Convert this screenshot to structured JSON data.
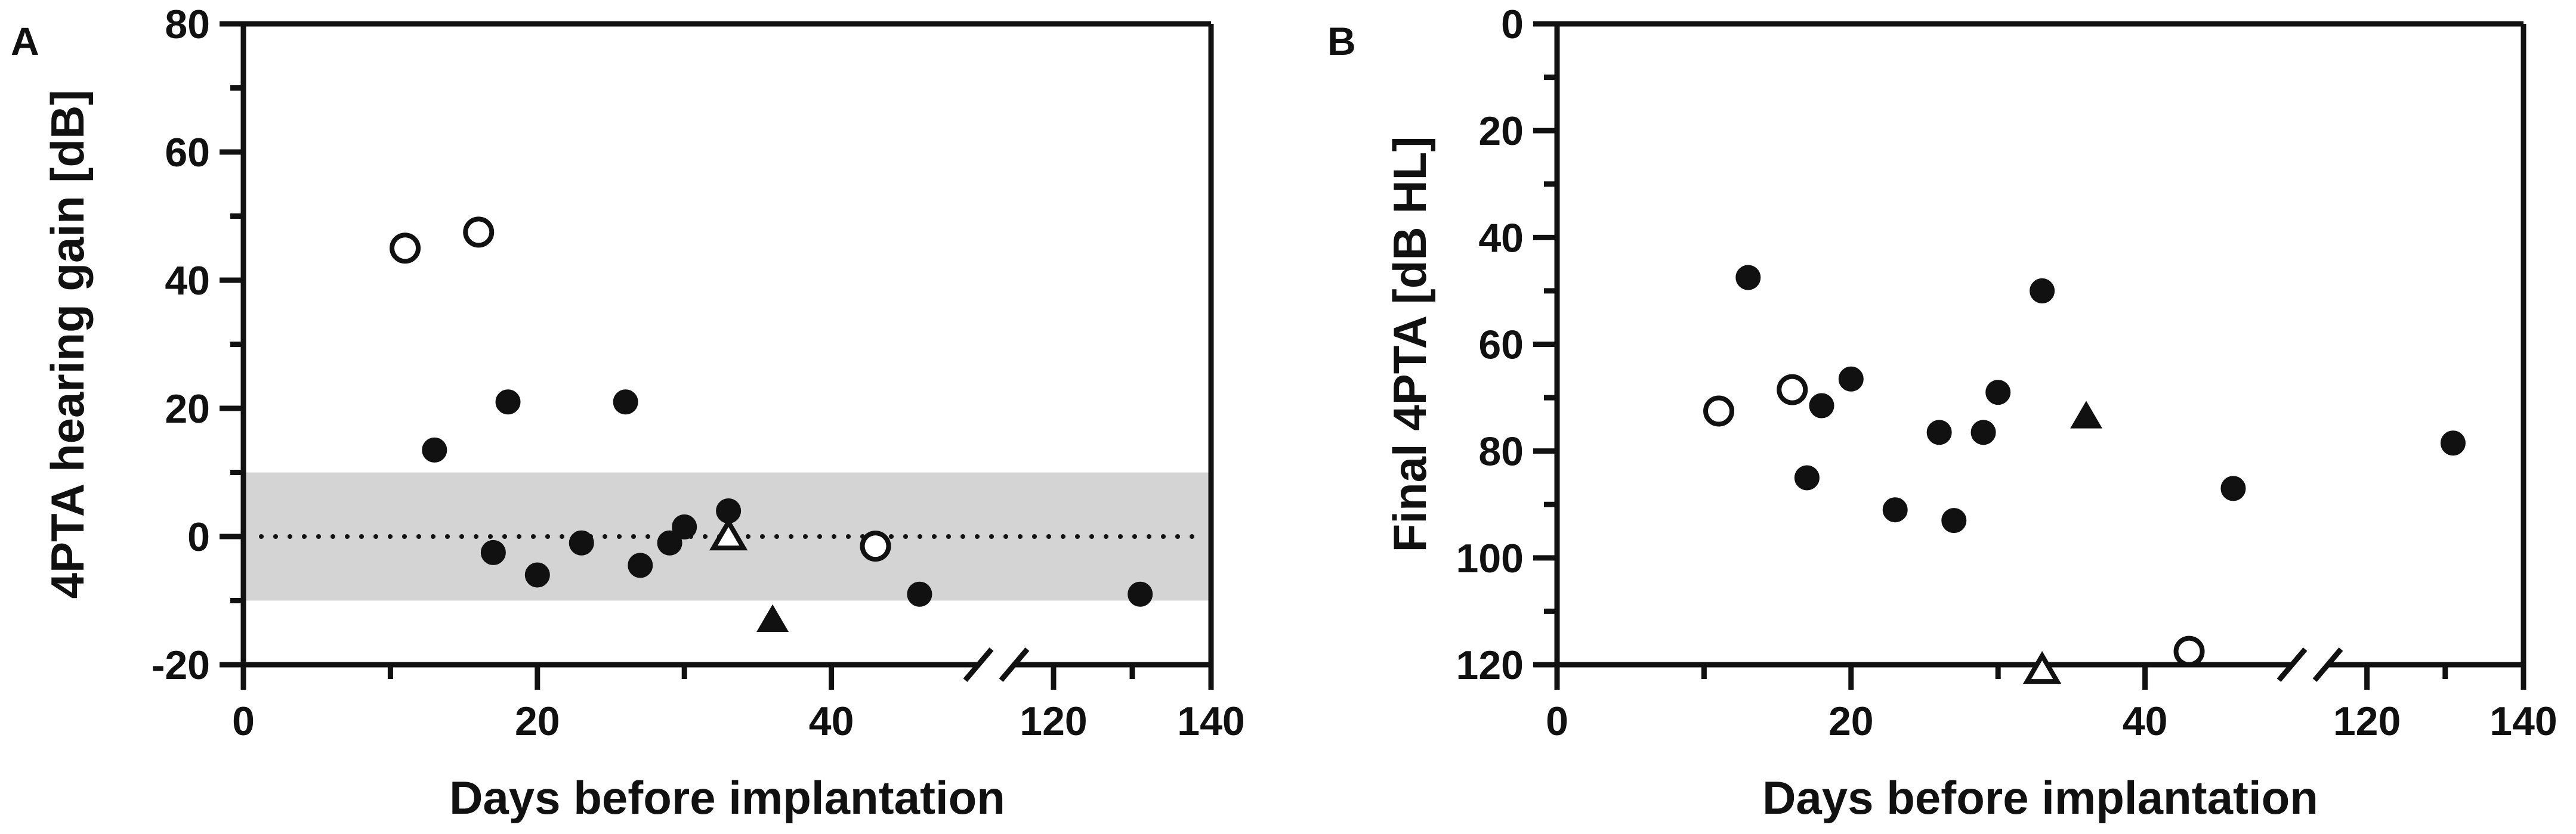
{
  "chart_data": [
    {
      "type": "scatter",
      "panel_label": "A",
      "title": "",
      "xlabel": "Days before implantation",
      "ylabel": "4PTA hearing gain [dB]",
      "x_axis": {
        "broken": true,
        "segments": [
          {
            "range": [
              0,
              50
            ]
          },
          {
            "range": [
              115,
              140
            ]
          }
        ],
        "ticks": [
          0,
          20,
          40,
          120,
          140
        ]
      },
      "ylim": [
        -20,
        80
      ],
      "y_ticks": [
        -20,
        0,
        20,
        40,
        60,
        80
      ],
      "reference_line": {
        "y": 0,
        "style": "dotted"
      },
      "shaded_band": {
        "y_from": -10,
        "y_to": 10,
        "color": "#d4d4d4"
      },
      "grid": false,
      "legend": "none",
      "series": [
        {
          "marker": "filled-circle",
          "points": [
            {
              "x": 13,
              "y": 13.5
            },
            {
              "x": 17,
              "y": -2.5
            },
            {
              "x": 18,
              "y": 21
            },
            {
              "x": 20,
              "y": -6
            },
            {
              "x": 23,
              "y": -1
            },
            {
              "x": 26,
              "y": 21
            },
            {
              "x": 27,
              "y": -4.5
            },
            {
              "x": 29,
              "y": -1
            },
            {
              "x": 30,
              "y": 1.5
            },
            {
              "x": 33,
              "y": 4
            },
            {
              "x": 46,
              "y": -9
            },
            {
              "x": 131,
              "y": -9
            }
          ]
        },
        {
          "marker": "open-circle",
          "points": [
            {
              "x": 11,
              "y": 45
            },
            {
              "x": 16,
              "y": 47.5
            },
            {
              "x": 43,
              "y": -1.5
            }
          ]
        },
        {
          "marker": "filled-triangle",
          "points": [
            {
              "x": 36,
              "y": -13
            }
          ]
        },
        {
          "marker": "open-triangle",
          "points": [
            {
              "x": 33,
              "y": 0
            }
          ]
        }
      ]
    },
    {
      "type": "scatter",
      "panel_label": "B",
      "title": "",
      "xlabel": "Days before implantation",
      "ylabel": "Final 4PTA [dB HL]",
      "x_axis": {
        "broken": true,
        "segments": [
          {
            "range": [
              0,
              50
            ]
          },
          {
            "range": [
              115,
              140
            ]
          }
        ],
        "ticks": [
          0,
          20,
          40,
          120,
          140
        ]
      },
      "ylim": [
        0,
        120
      ],
      "y_inverted": true,
      "y_ticks": [
        0,
        20,
        40,
        60,
        80,
        100,
        120
      ],
      "grid": false,
      "legend": "none",
      "series": [
        {
          "marker": "filled-circle",
          "points": [
            {
              "x": 13,
              "y": 47.5
            },
            {
              "x": 17,
              "y": 85
            },
            {
              "x": 18,
              "y": 71.5
            },
            {
              "x": 20,
              "y": 66.5
            },
            {
              "x": 23,
              "y": 91
            },
            {
              "x": 26,
              "y": 76.5
            },
            {
              "x": 27,
              "y": 93
            },
            {
              "x": 29,
              "y": 76.5
            },
            {
              "x": 30,
              "y": 69
            },
            {
              "x": 33,
              "y": 50
            },
            {
              "x": 46,
              "y": 87
            },
            {
              "x": 131,
              "y": 78.5
            }
          ]
        },
        {
          "marker": "open-circle",
          "points": [
            {
              "x": 11,
              "y": 72.5
            },
            {
              "x": 16,
              "y": 68.5
            },
            {
              "x": 43,
              "y": 117.5
            }
          ]
        },
        {
          "marker": "filled-triangle",
          "points": [
            {
              "x": 36,
              "y": 73.5
            }
          ]
        },
        {
          "marker": "open-triangle",
          "points": [
            {
              "x": 33,
              "y": 121
            }
          ]
        }
      ]
    }
  ]
}
